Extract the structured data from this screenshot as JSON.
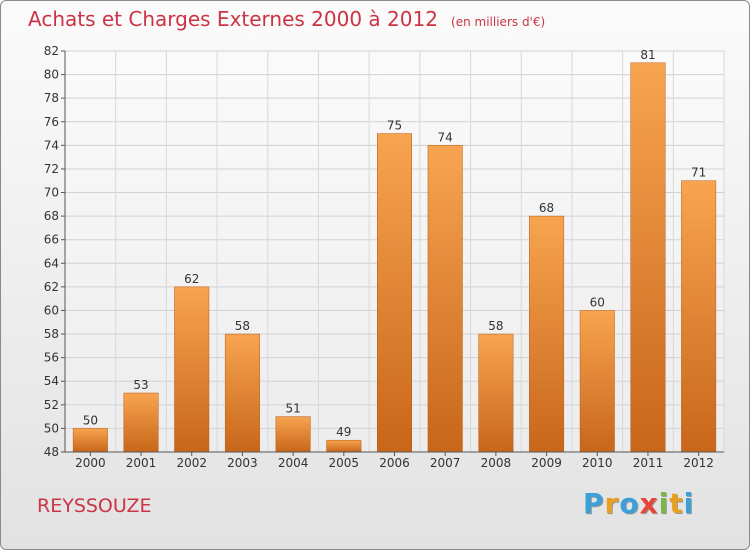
{
  "chart_data": {
    "type": "bar",
    "title": "Achats et Charges Externes 2000 à 2012",
    "unit_label": "(en milliers d'€)",
    "categories": [
      "2000",
      "2001",
      "2002",
      "2003",
      "2004",
      "2005",
      "2006",
      "2007",
      "2008",
      "2009",
      "2010",
      "2011",
      "2012"
    ],
    "values": [
      50,
      53,
      62,
      58,
      51,
      49,
      75,
      74,
      58,
      68,
      60,
      81,
      71
    ],
    "ylim": [
      48,
      82
    ],
    "yticks": [
      48,
      50,
      52,
      54,
      56,
      58,
      60,
      62,
      64,
      66,
      68,
      70,
      72,
      74,
      76,
      78,
      80,
      82
    ],
    "grid": true,
    "bar_color_top": "#f7a450",
    "bar_color_bottom": "#c8661a"
  },
  "location": "REYSSOUZE",
  "brand": {
    "letters": [
      "P",
      "r",
      "o",
      "x",
      "i",
      "t",
      "i"
    ],
    "colors": [
      "#3aa0d8",
      "#e8a020",
      "#3aa0d8",
      "#e8443a",
      "#7ab648",
      "#e8a020",
      "#3aa0d8"
    ]
  }
}
